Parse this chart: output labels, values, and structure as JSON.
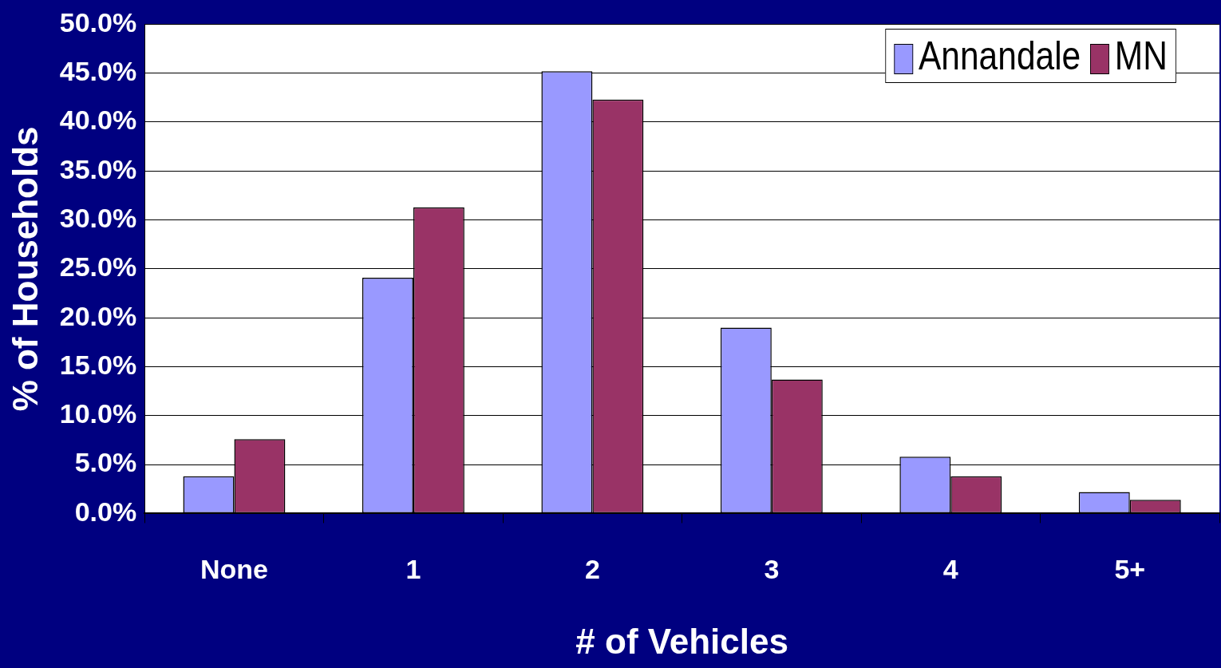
{
  "chart_data": {
    "type": "bar",
    "xlabel": "# of Vehicles",
    "ylabel": "% of Households",
    "categories": [
      "None",
      "1",
      "2",
      "3",
      "4",
      "5+"
    ],
    "series": [
      {
        "name": "Annandale",
        "color": "#9999ff",
        "values": [
          3.8,
          24.1,
          45.2,
          19.0,
          5.8,
          2.2
        ]
      },
      {
        "name": "MN",
        "color": "#993366",
        "values": [
          7.6,
          31.3,
          42.3,
          13.7,
          3.8,
          1.4
        ]
      }
    ],
    "ylim": [
      0,
      50
    ],
    "yticks": [
      {
        "value": 0,
        "label": "0.0%"
      },
      {
        "value": 5,
        "label": "5.0%"
      },
      {
        "value": 10,
        "label": "10.0%"
      },
      {
        "value": 15,
        "label": "15.0%"
      },
      {
        "value": 20,
        "label": "20.0%"
      },
      {
        "value": 25,
        "label": "25.0%"
      },
      {
        "value": 30,
        "label": "30.0%"
      },
      {
        "value": 35,
        "label": "35.0%"
      },
      {
        "value": 40,
        "label": "40.0%"
      },
      {
        "value": 45,
        "label": "45.0%"
      },
      {
        "value": 50,
        "label": "50.0%"
      }
    ],
    "grid": "y",
    "legend": "top right"
  }
}
